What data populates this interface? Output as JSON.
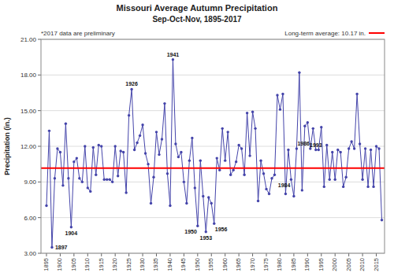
{
  "chart_data": {
    "type": "line",
    "title": "Missouri Average Autumn Precipitation",
    "subtitle": "Sep-Oct-Nov, 1895-2017",
    "y_label": "Precipitation (in.)",
    "note": "*2017 data are preliminary",
    "average": {
      "value": 10.17,
      "label": "Long-term average: 10.17 in.",
      "color": "#FF0000"
    },
    "color": "#4444AA",
    "marker": "circle",
    "grid": "y",
    "x": [
      1895,
      1896,
      1897,
      1898,
      1899,
      1900,
      1901,
      1902,
      1903,
      1904,
      1905,
      1906,
      1907,
      1908,
      1909,
      1910,
      1911,
      1912,
      1913,
      1914,
      1915,
      1916,
      1917,
      1918,
      1919,
      1920,
      1921,
      1922,
      1923,
      1924,
      1925,
      1926,
      1927,
      1928,
      1929,
      1930,
      1931,
      1932,
      1933,
      1934,
      1935,
      1936,
      1937,
      1938,
      1939,
      1940,
      1941,
      1942,
      1943,
      1944,
      1945,
      1946,
      1947,
      1948,
      1949,
      1950,
      1951,
      1952,
      1953,
      1954,
      1955,
      1956,
      1957,
      1958,
      1959,
      1960,
      1961,
      1962,
      1963,
      1964,
      1965,
      1966,
      1967,
      1968,
      1969,
      1970,
      1971,
      1972,
      1973,
      1974,
      1975,
      1976,
      1977,
      1978,
      1979,
      1980,
      1981,
      1982,
      1983,
      1984,
      1985,
      1986,
      1987,
      1988,
      1989,
      1990,
      1991,
      1992,
      1993,
      1994,
      1995,
      1996,
      1997,
      1998,
      1999,
      2000,
      2001,
      2002,
      2003,
      2004,
      2005,
      2006,
      2007,
      2008,
      2009,
      2010,
      2011,
      2012,
      2013,
      2014,
      2015,
      2016,
      2017
    ],
    "values": [
      7.0,
      13.3,
      3.5,
      9.3,
      11.8,
      11.5,
      8.7,
      13.9,
      9.3,
      5.2,
      10.7,
      11.0,
      9.3,
      9.0,
      12.0,
      8.5,
      8.2,
      11.9,
      9.6,
      12.1,
      12.0,
      9.2,
      9.2,
      9.2,
      9.0,
      12.0,
      9.5,
      11.6,
      11.5,
      8.1,
      14.6,
      16.8,
      11.7,
      12.3,
      12.9,
      13.8,
      11.4,
      10.5,
      7.2,
      9.4,
      13.2,
      11.3,
      12.6,
      15.6,
      9.7,
      7.0,
      19.3,
      12.2,
      11.1,
      11.5,
      9.0,
      7.2,
      10.8,
      12.7,
      8.5,
      5.3,
      10.8,
      7.8,
      4.8,
      7.7,
      7.2,
      5.5,
      11.0,
      10.0,
      13.5,
      10.8,
      13.2,
      9.6,
      10.0,
      10.7,
      12.1,
      11.8,
      9.6,
      14.8,
      11.2,
      14.9,
      13.5,
      7.4,
      10.8,
      9.7,
      8.4,
      8.0,
      9.3,
      9.6,
      16.3,
      15.1,
      16.4,
      8.0,
      11.7,
      9.2,
      7.8,
      11.8,
      18.2,
      8.3,
      13.7,
      14.0,
      11.8,
      13.5,
      11.7,
      11.7,
      13.6,
      8.6,
      12.1,
      9.2,
      11.5,
      9.2,
      11.7,
      11.5,
      8.6,
      9.4,
      11.8,
      12.4,
      11.8,
      16.4,
      12.2,
      9.2,
      11.8,
      8.6,
      11.7,
      8.6,
      12.0,
      11.8,
      5.8
    ],
    "xlim": [
      1893,
      2018
    ],
    "xticks": [
      1895,
      1900,
      1905,
      1910,
      1915,
      1920,
      1925,
      1930,
      1935,
      1940,
      1945,
      1950,
      1955,
      1960,
      1965,
      1970,
      1975,
      1980,
      1985,
      1990,
      1995,
      2000,
      2005,
      2010,
      2015
    ],
    "ylim": [
      3.0,
      21.0
    ],
    "yticks": [
      {
        "value": 3.0,
        "label": "3.00"
      },
      {
        "value": 6.0,
        "label": "6.00"
      },
      {
        "value": 9.0,
        "label": "9.00"
      },
      {
        "value": 12.0,
        "label": "12.00"
      },
      {
        "value": 15.0,
        "label": "15.00"
      },
      {
        "value": 18.0,
        "label": "18.00"
      },
      {
        "value": 21.0,
        "label": "21.00"
      }
    ],
    "annotations": [
      {
        "x": 1897,
        "text": "1897"
      },
      {
        "x": 1904,
        "text": "1904"
      },
      {
        "x": 1926,
        "text": "1926"
      },
      {
        "x": 1941,
        "text": "1941"
      },
      {
        "x": 1950,
        "text": "1950"
      },
      {
        "x": 1953,
        "text": "1953"
      },
      {
        "x": 1956,
        "text": "1956"
      },
      {
        "x": 1984,
        "text": "1984"
      },
      {
        "x": 1986,
        "text": "1986"
      },
      {
        "x": 1993,
        "text": "1993"
      }
    ]
  }
}
